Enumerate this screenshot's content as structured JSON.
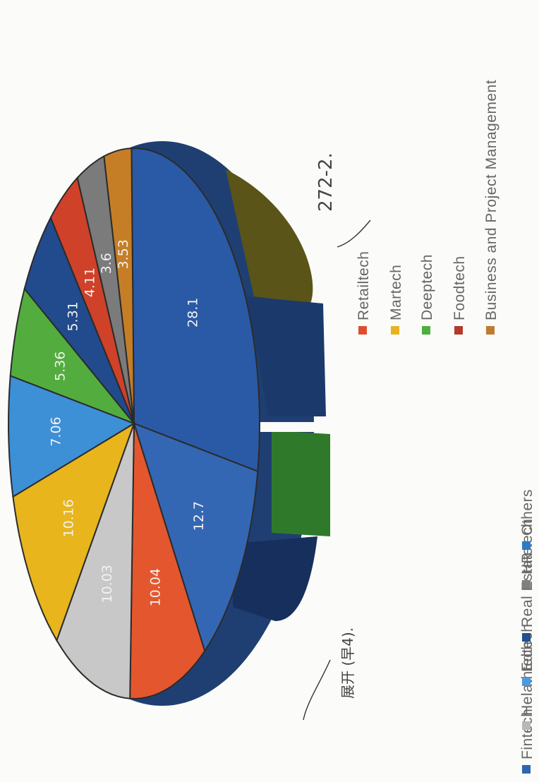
{
  "chart_data": {
    "type": "pie",
    "labels": [
      "Fintech",
      "Helathtech",
      "Edtech",
      "Real Estate",
      "HR tech",
      "Others",
      "Retailtech",
      "Martech",
      "Deeptech",
      "Foodtech",
      "Business and Project Management"
    ],
    "values": [
      28.1,
      12.7,
      10.04,
      10.03,
      10.16,
      7.06,
      5.36,
      5.31,
      4.11,
      3.6,
      3.53
    ],
    "slices": [
      {
        "value": 28.1,
        "label": "28.1",
        "color": "#2a5aa6"
      },
      {
        "value": 12.7,
        "label": "12.7",
        "color": "#3467b3"
      },
      {
        "value": 10.04,
        "label": "10.04",
        "color": "#e4572e"
      },
      {
        "value": 10.03,
        "label": "10.03",
        "color": "#c8c8c8"
      },
      {
        "value": 10.16,
        "label": "10.16",
        "color": "#e8b51d"
      },
      {
        "value": 7.06,
        "label": "7.06",
        "color": "#3d8fd6"
      },
      {
        "value": 5.36,
        "label": "5.36",
        "color": "#53ad3e"
      },
      {
        "value": 5.31,
        "label": "5.31",
        "color": "#214b8c"
      },
      {
        "value": 4.11,
        "label": "4.11",
        "color": "#cf4128"
      },
      {
        "value": 3.6,
        "label": "3.6",
        "color": "#7b7b7b"
      },
      {
        "value": 3.53,
        "label": "3.53",
        "color": "#c67e26"
      }
    ],
    "legend": [
      {
        "label": "Fintech",
        "color": "#2f64b0"
      },
      {
        "label": "Helathtech",
        "color": "#b8b8b8"
      },
      {
        "label": "Edtech",
        "color": "#4a9be0"
      },
      {
        "label": "Real Estate",
        "color": "#234e8f"
      },
      {
        "label": "HR tech",
        "color": "#808080"
      },
      {
        "label": "Others",
        "color": "#2f79c6"
      },
      {
        "label": "Retailtech",
        "color": "#df4d30"
      },
      {
        "label": "Martech",
        "color": "#e8b320"
      },
      {
        "label": "Deeptech",
        "color": "#4caf3f"
      },
      {
        "label": "Foodtech",
        "color": "#b23a2b"
      },
      {
        "label": "Business and Project Management",
        "color": "#c07b32"
      }
    ],
    "legend_placement": "left, rotated 90°"
  },
  "annotations": {
    "handwritten_top": "272-2.",
    "handwritten_bottom": "展开 (早4)."
  }
}
